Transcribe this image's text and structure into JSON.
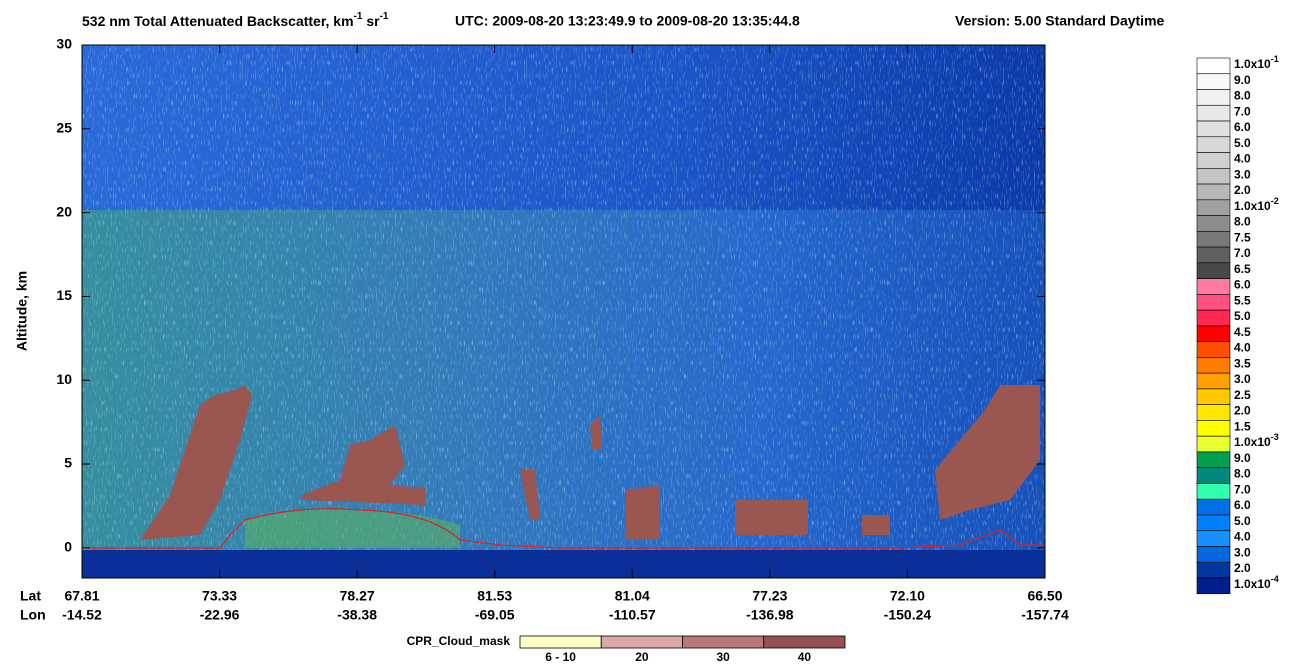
{
  "chart_data": {
    "type": "curtain",
    "title": {
      "main": "532 nm Total Attenuated Backscatter, km",
      "sup1": "-1",
      "unit2": "sr",
      "sup2": "-1"
    },
    "utc": "UTC:  2009-08-20 13:23:49.9  to  2009-08-20 13:35:44.8",
    "version": "Version: 5.00  Standard  Daytime",
    "ylabel": "Altitude, km",
    "ylim": [
      -1.8,
      30
    ],
    "yticks": [
      0,
      5,
      10,
      15,
      20,
      25,
      30
    ],
    "lat_label": "Lat",
    "lon_label": "Lon",
    "lat": [
      "67.81",
      "73.33",
      "78.27",
      "81.53",
      "81.04",
      "77.23",
      "72.10",
      "66.50"
    ],
    "lon": [
      "-14.52",
      "-22.96",
      "-38.38",
      "-69.05",
      "-110.57",
      "-136.98",
      "-150.24",
      "-157.74"
    ],
    "colorbar": {
      "labels": [
        {
          "text": "1.0x10",
          "exp": "-1"
        },
        {
          "text": "9.0"
        },
        {
          "text": "8.0"
        },
        {
          "text": "7.0"
        },
        {
          "text": "6.0"
        },
        {
          "text": "5.0"
        },
        {
          "text": "4.0"
        },
        {
          "text": "3.0"
        },
        {
          "text": "2.0"
        },
        {
          "text": "1.0x10",
          "exp": "-2"
        },
        {
          "text": "8.0"
        },
        {
          "text": "7.5"
        },
        {
          "text": "7.0"
        },
        {
          "text": "6.5"
        },
        {
          "text": "6.0"
        },
        {
          "text": "5.5"
        },
        {
          "text": "5.0"
        },
        {
          "text": "4.5"
        },
        {
          "text": "4.0"
        },
        {
          "text": "3.5"
        },
        {
          "text": "3.0"
        },
        {
          "text": "2.5"
        },
        {
          "text": "2.0"
        },
        {
          "text": "1.5"
        },
        {
          "text": "1.0x10",
          "exp": "-3"
        },
        {
          "text": "9.0"
        },
        {
          "text": "8.0"
        },
        {
          "text": "7.0"
        },
        {
          "text": "6.0"
        },
        {
          "text": "5.0"
        },
        {
          "text": "4.0"
        },
        {
          "text": "3.0"
        },
        {
          "text": "2.0"
        },
        {
          "text": "1.0x10",
          "exp": "-4"
        }
      ],
      "colors": [
        "#ffffff",
        "#f8f8f8",
        "#f0f0f0",
        "#e8e8e8",
        "#e0e0e0",
        "#d8d8d8",
        "#d0d0d0",
        "#c4c4c4",
        "#b8b8b8",
        "#a0a0a0",
        "#8c8c8c",
        "#787878",
        "#606060",
        "#484848",
        "#ff7aa0",
        "#ff5080",
        "#ff2850",
        "#ff0000",
        "#ff5000",
        "#ff7c00",
        "#ffa000",
        "#ffc800",
        "#ffe600",
        "#ffff00",
        "#e8ff30",
        "#00a050",
        "#00887c",
        "#30ffb0",
        "#0070e8",
        "#0080ff",
        "#1890ff",
        "#0068e0",
        "#0038a0",
        "#002090"
      ]
    },
    "mask": {
      "title": "CPR_Cloud_mask",
      "labels": [
        "6 - 10",
        "20",
        "30",
        "40"
      ],
      "colors": [
        "#ffffc8",
        "#d8a8a8",
        "#b87878",
        "#985050"
      ]
    }
  }
}
